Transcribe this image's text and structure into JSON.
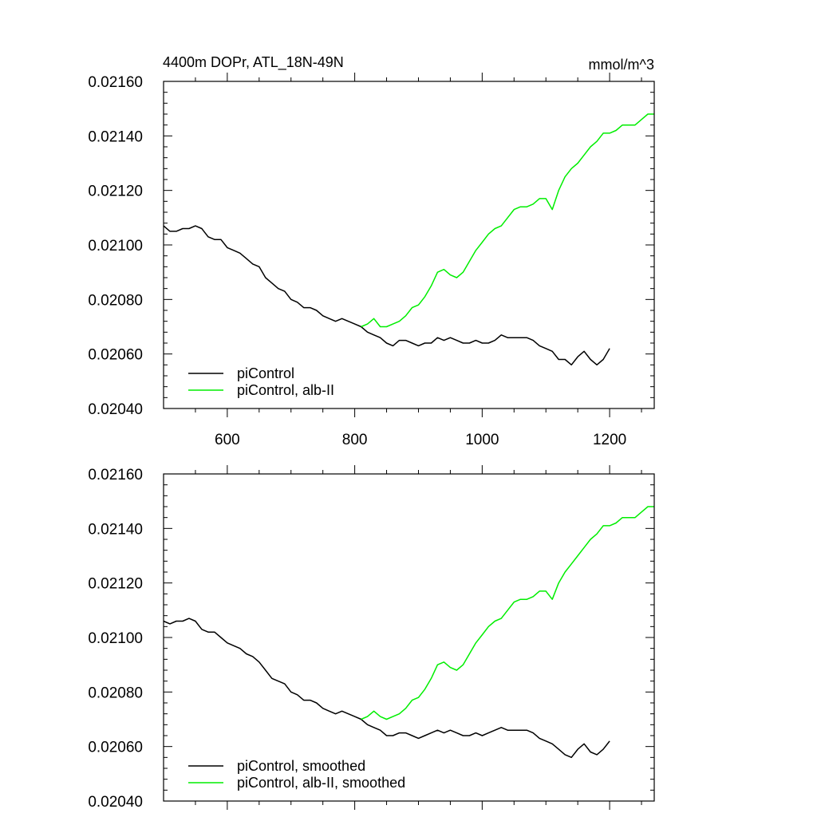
{
  "chart_data": [
    {
      "type": "line",
      "title": "4400m DOPr, ATL_18N-49N",
      "title_right": "mmol/m^3",
      "xlabel": "",
      "ylabel": "",
      "xlim": [
        500,
        1270
      ],
      "ylim": [
        0.0204,
        0.0216
      ],
      "xticks": [
        600,
        800,
        1000,
        1200
      ],
      "xtick_labels": [
        "600",
        "800",
        "1000",
        "1200"
      ],
      "yticks": [
        0.0204,
        0.0206,
        0.0208,
        0.021,
        0.0212,
        0.0214,
        0.0216
      ],
      "ytick_labels": [
        "0.02040",
        "0.02060",
        "0.02080",
        "0.02100",
        "0.02120",
        "0.02140",
        "0.02160"
      ],
      "legend_position": "bottom-left",
      "series": [
        {
          "name": "piControl",
          "color": "#000000",
          "x": [
            500,
            510,
            520,
            530,
            540,
            550,
            560,
            570,
            580,
            590,
            600,
            610,
            620,
            630,
            640,
            650,
            660,
            670,
            680,
            690,
            700,
            710,
            720,
            730,
            740,
            750,
            760,
            770,
            780,
            790,
            800,
            810,
            820,
            830,
            840,
            850,
            860,
            870,
            880,
            890,
            900,
            910,
            920,
            930,
            940,
            950,
            960,
            970,
            980,
            990,
            1000,
            1010,
            1020,
            1030,
            1040,
            1050,
            1060,
            1070,
            1080,
            1090,
            1100,
            1110,
            1120,
            1130,
            1140,
            1150,
            1160,
            1170,
            1180,
            1190,
            1200
          ],
          "values": [
            0.02107,
            0.02105,
            0.02105,
            0.02106,
            0.02106,
            0.02107,
            0.02106,
            0.02103,
            0.02102,
            0.02102,
            0.02099,
            0.02098,
            0.02097,
            0.02095,
            0.02093,
            0.02092,
            0.02088,
            0.02086,
            0.02084,
            0.02083,
            0.0208,
            0.02079,
            0.02077,
            0.02077,
            0.02076,
            0.02074,
            0.02073,
            0.02072,
            0.02073,
            0.02072,
            0.02071,
            0.0207,
            0.02068,
            0.02067,
            0.02066,
            0.02064,
            0.02063,
            0.02065,
            0.02065,
            0.02064,
            0.02063,
            0.02064,
            0.02064,
            0.02066,
            0.02065,
            0.02066,
            0.02065,
            0.02064,
            0.02064,
            0.02065,
            0.02064,
            0.02064,
            0.02065,
            0.02067,
            0.02066,
            0.02066,
            0.02066,
            0.02066,
            0.02065,
            0.02063,
            0.02062,
            0.02061,
            0.02058,
            0.02058,
            0.02056,
            0.02059,
            0.02061,
            0.02058,
            0.02056,
            0.02058,
            0.02062
          ]
        },
        {
          "name": "piControl, alb-II",
          "color": "#00ee00",
          "x": [
            810,
            820,
            830,
            840,
            850,
            860,
            870,
            880,
            890,
            900,
            910,
            920,
            930,
            940,
            950,
            960,
            970,
            980,
            990,
            1000,
            1010,
            1020,
            1030,
            1040,
            1050,
            1060,
            1070,
            1080,
            1090,
            1100,
            1110,
            1120,
            1130,
            1140,
            1150,
            1160,
            1170,
            1180,
            1190,
            1200,
            1210,
            1220,
            1230,
            1240,
            1250,
            1260,
            1270
          ],
          "values": [
            0.0207,
            0.02071,
            0.02073,
            0.0207,
            0.0207,
            0.02071,
            0.02072,
            0.02074,
            0.02077,
            0.02078,
            0.02081,
            0.02085,
            0.0209,
            0.02091,
            0.02089,
            0.02088,
            0.0209,
            0.02094,
            0.02098,
            0.02101,
            0.02104,
            0.02106,
            0.02107,
            0.0211,
            0.02113,
            0.02114,
            0.02114,
            0.02115,
            0.02117,
            0.02117,
            0.02113,
            0.0212,
            0.02125,
            0.02128,
            0.0213,
            0.02133,
            0.02136,
            0.02138,
            0.02141,
            0.02141,
            0.02142,
            0.02144,
            0.02144,
            0.02144,
            0.02146,
            0.02148,
            0.02148
          ]
        }
      ]
    },
    {
      "type": "line",
      "title": "",
      "xlabel": "",
      "ylabel": "",
      "xlim": [
        500,
        1270
      ],
      "ylim": [
        0.0204,
        0.0216
      ],
      "xticks": [
        600,
        800,
        1000,
        1200
      ],
      "yticks": [
        0.0204,
        0.0206,
        0.0208,
        0.021,
        0.0212,
        0.0214,
        0.0216
      ],
      "ytick_labels": [
        "0.02040",
        "0.02060",
        "0.02080",
        "0.02100",
        "0.02120",
        "0.02140",
        "0.02160"
      ],
      "legend_position": "bottom-left",
      "series": [
        {
          "name": "piControl, smoothed",
          "color": "#000000",
          "x": [
            500,
            510,
            520,
            530,
            540,
            550,
            560,
            570,
            580,
            590,
            600,
            610,
            620,
            630,
            640,
            650,
            660,
            670,
            680,
            690,
            700,
            710,
            720,
            730,
            740,
            750,
            760,
            770,
            780,
            790,
            800,
            810,
            820,
            830,
            840,
            850,
            860,
            870,
            880,
            890,
            900,
            910,
            920,
            930,
            940,
            950,
            960,
            970,
            980,
            990,
            1000,
            1010,
            1020,
            1030,
            1040,
            1050,
            1060,
            1070,
            1080,
            1090,
            1100,
            1110,
            1120,
            1130,
            1140,
            1150,
            1160,
            1170,
            1180,
            1190,
            1200
          ],
          "values": [
            0.02106,
            0.02105,
            0.02106,
            0.02106,
            0.02107,
            0.02106,
            0.02103,
            0.02102,
            0.02102,
            0.021,
            0.02098,
            0.02097,
            0.02096,
            0.02094,
            0.02093,
            0.02091,
            0.02088,
            0.02085,
            0.02084,
            0.02083,
            0.0208,
            0.02079,
            0.02077,
            0.02077,
            0.02076,
            0.02074,
            0.02073,
            0.02072,
            0.02073,
            0.02072,
            0.02071,
            0.0207,
            0.02068,
            0.02067,
            0.02066,
            0.02064,
            0.02064,
            0.02065,
            0.02065,
            0.02064,
            0.02063,
            0.02064,
            0.02065,
            0.02066,
            0.02065,
            0.02066,
            0.02065,
            0.02064,
            0.02064,
            0.02065,
            0.02064,
            0.02065,
            0.02066,
            0.02067,
            0.02066,
            0.02066,
            0.02066,
            0.02066,
            0.02065,
            0.02063,
            0.02062,
            0.02061,
            0.02059,
            0.02057,
            0.02056,
            0.02059,
            0.02061,
            0.02058,
            0.02057,
            0.02059,
            0.02062
          ]
        },
        {
          "name": "piControl, alb-II, smoothed",
          "color": "#00ee00",
          "x": [
            810,
            820,
            830,
            840,
            850,
            860,
            870,
            880,
            890,
            900,
            910,
            920,
            930,
            940,
            950,
            960,
            970,
            980,
            990,
            1000,
            1010,
            1020,
            1030,
            1040,
            1050,
            1060,
            1070,
            1080,
            1090,
            1100,
            1110,
            1120,
            1130,
            1140,
            1150,
            1160,
            1170,
            1180,
            1190,
            1200,
            1210,
            1220,
            1230,
            1240,
            1250,
            1260,
            1270
          ],
          "values": [
            0.0207,
            0.02071,
            0.02073,
            0.02071,
            0.0207,
            0.02071,
            0.02072,
            0.02074,
            0.02077,
            0.02078,
            0.02081,
            0.02085,
            0.0209,
            0.02091,
            0.02089,
            0.02088,
            0.0209,
            0.02094,
            0.02098,
            0.02101,
            0.02104,
            0.02106,
            0.02107,
            0.0211,
            0.02113,
            0.02114,
            0.02114,
            0.02115,
            0.02117,
            0.02117,
            0.02114,
            0.0212,
            0.02124,
            0.02127,
            0.0213,
            0.02133,
            0.02136,
            0.02138,
            0.02141,
            0.02141,
            0.02142,
            0.02144,
            0.02144,
            0.02144,
            0.02146,
            0.02148,
            0.02148
          ]
        }
      ]
    }
  ]
}
